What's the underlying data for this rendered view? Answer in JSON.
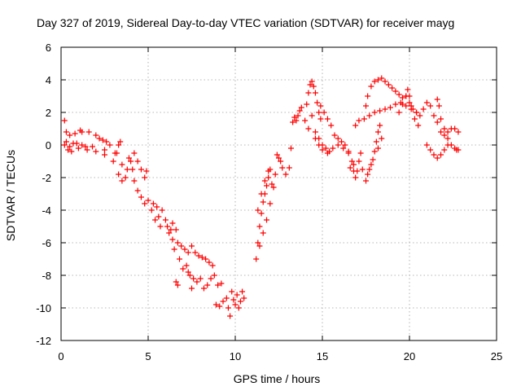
{
  "chart_data": {
    "type": "scatter",
    "title": "Day 327 of 2019, Sidereal Day-to-day VTEC variation (SDTVAR) for receiver mayg",
    "xlabel": "GPS time / hours",
    "ylabel": "SDTVAR / TECUs",
    "xlim": [
      0,
      25
    ],
    "ylim": [
      -12,
      6
    ],
    "xticks": [
      "0",
      "5",
      "10",
      "15",
      "20",
      "25"
    ],
    "yticks": [
      "-12",
      "-10",
      "-8",
      "-6",
      "-4",
      "-2",
      "0",
      "2",
      "4",
      "6"
    ],
    "grid": true,
    "marker": "plus",
    "color": "#ff0000",
    "series": [
      {
        "name": "SDTVAR",
        "points": [
          [
            0.2,
            1.5
          ],
          [
            0.3,
            0.8
          ],
          [
            0.5,
            0.6
          ],
          [
            0.8,
            0.7
          ],
          [
            1.2,
            0.8
          ],
          [
            1.6,
            0.8
          ],
          [
            2.0,
            0.6
          ],
          [
            2.4,
            0.3
          ],
          [
            2.8,
            0.0
          ],
          [
            3.1,
            -0.5
          ],
          [
            3.3,
            0.0
          ],
          [
            3.5,
            -1.2
          ],
          [
            3.7,
            -2.0
          ],
          [
            0.2,
            0.0
          ],
          [
            0.5,
            -0.1
          ],
          [
            1.0,
            -0.2
          ],
          [
            1.5,
            -0.3
          ],
          [
            2.0,
            -0.4
          ],
          [
            2.5,
            -0.6
          ],
          [
            3.0,
            -1.0
          ],
          [
            3.3,
            -1.8
          ],
          [
            3.5,
            -2.2
          ],
          [
            0.3,
            0.2
          ],
          [
            0.7,
            0.1
          ],
          [
            1.2,
            0.0
          ],
          [
            1.8,
            -0.1
          ],
          [
            2.5,
            -0.3
          ],
          [
            3.2,
            -0.5
          ],
          [
            3.8,
            -1.5
          ],
          [
            4.0,
            -1.0
          ],
          [
            4.2,
            -0.5
          ],
          [
            4.4,
            -1.0
          ],
          [
            4.6,
            -1.5
          ],
          [
            4.8,
            -2.0
          ],
          [
            4.9,
            -1.6
          ],
          [
            4.2,
            -2.2
          ],
          [
            4.4,
            -2.8
          ],
          [
            4.6,
            -3.2
          ],
          [
            4.8,
            -3.6
          ],
          [
            5.0,
            -3.4
          ],
          [
            5.2,
            -4.0
          ],
          [
            5.3,
            -3.6
          ],
          [
            5.5,
            -3.8
          ],
          [
            5.6,
            -4.4
          ],
          [
            5.8,
            -4.0
          ],
          [
            6.0,
            -4.6
          ],
          [
            6.1,
            -5.0
          ],
          [
            6.2,
            -5.4
          ],
          [
            6.3,
            -5.2
          ],
          [
            6.4,
            -5.8
          ],
          [
            6.5,
            -6.4
          ],
          [
            6.4,
            -4.8
          ],
          [
            6.6,
            -5.2
          ],
          [
            5.4,
            -4.6
          ],
          [
            5.7,
            -5.0
          ],
          [
            6.7,
            -6.0
          ],
          [
            6.9,
            -6.2
          ],
          [
            7.1,
            -6.4
          ],
          [
            7.3,
            -6.6
          ],
          [
            7.5,
            -6.2
          ],
          [
            7.7,
            -6.6
          ],
          [
            7.9,
            -6.8
          ],
          [
            8.1,
            -6.9
          ],
          [
            8.3,
            -7.0
          ],
          [
            8.5,
            -7.2
          ],
          [
            8.7,
            -7.4
          ],
          [
            6.8,
            -7.0
          ],
          [
            7.0,
            -7.6
          ],
          [
            7.2,
            -7.4
          ],
          [
            7.4,
            -8.0
          ],
          [
            7.6,
            -8.2
          ],
          [
            7.8,
            -8.4
          ],
          [
            8.0,
            -8.2
          ],
          [
            8.2,
            -8.8
          ],
          [
            8.4,
            -8.6
          ],
          [
            6.6,
            -8.4
          ],
          [
            6.7,
            -8.6
          ],
          [
            7.3,
            -7.8
          ],
          [
            7.5,
            -8.8
          ],
          [
            8.6,
            -8.2
          ],
          [
            8.8,
            -8.0
          ],
          [
            9.0,
            -8.6
          ],
          [
            9.2,
            -8.5
          ],
          [
            8.9,
            -9.8
          ],
          [
            9.1,
            -9.9
          ],
          [
            9.3,
            -9.6
          ],
          [
            9.5,
            -9.4
          ],
          [
            9.6,
            -10.0
          ],
          [
            9.7,
            -10.5
          ],
          [
            9.8,
            -9.0
          ],
          [
            9.9,
            -9.5
          ],
          [
            10.0,
            -9.8
          ],
          [
            10.1,
            -9.2
          ],
          [
            10.2,
            -10.0
          ],
          [
            10.3,
            -9.6
          ],
          [
            10.4,
            -9.0
          ],
          [
            10.5,
            -9.4
          ],
          [
            11.2,
            -7.0
          ],
          [
            11.3,
            -6.0
          ],
          [
            11.4,
            -5.0
          ],
          [
            11.5,
            -4.2
          ],
          [
            11.6,
            -3.5
          ],
          [
            11.7,
            -3.0
          ],
          [
            11.8,
            -2.5
          ],
          [
            11.9,
            -2.0
          ],
          [
            12.0,
            -1.5
          ],
          [
            11.3,
            -4.0
          ],
          [
            11.5,
            -3.0
          ],
          [
            11.7,
            -2.2
          ],
          [
            11.9,
            -1.6
          ],
          [
            12.1,
            -2.4
          ],
          [
            11.4,
            -6.2
          ],
          [
            11.6,
            -5.4
          ],
          [
            11.8,
            -4.6
          ],
          [
            12.0,
            -3.6
          ],
          [
            12.2,
            -2.6
          ],
          [
            12.3,
            -1.8
          ],
          [
            12.4,
            -0.6
          ],
          [
            12.5,
            -0.8
          ],
          [
            12.6,
            -1.0
          ],
          [
            12.7,
            -1.4
          ],
          [
            12.9,
            -1.8
          ],
          [
            13.1,
            -1.4
          ],
          [
            13.2,
            -0.2
          ],
          [
            13.3,
            1.4
          ],
          [
            13.4,
            1.7
          ],
          [
            13.5,
            1.5
          ],
          [
            13.6,
            1.8
          ],
          [
            13.7,
            2.1
          ],
          [
            13.8,
            2.3
          ],
          [
            14.0,
            1.5
          ],
          [
            14.1,
            2.5
          ],
          [
            14.2,
            3.2
          ],
          [
            14.3,
            3.7
          ],
          [
            14.4,
            3.9
          ],
          [
            14.5,
            3.6
          ],
          [
            14.6,
            3.2
          ],
          [
            14.7,
            2.6
          ],
          [
            14.8,
            2.0
          ],
          [
            14.9,
            1.6
          ],
          [
            14.2,
            1.0
          ],
          [
            14.4,
            1.8
          ],
          [
            14.6,
            0.8
          ],
          [
            14.8,
            0.4
          ],
          [
            15.0,
            0.0
          ],
          [
            15.2,
            -0.2
          ],
          [
            15.4,
            -0.4
          ],
          [
            14.9,
            2.4
          ],
          [
            15.1,
            2.0
          ],
          [
            15.3,
            1.6
          ],
          [
            15.5,
            1.2
          ],
          [
            15.7,
            0.6
          ],
          [
            15.9,
            0.4
          ],
          [
            16.1,
            0.2
          ],
          [
            14.6,
            0.4
          ],
          [
            14.8,
            0.0
          ],
          [
            15.0,
            -0.3
          ],
          [
            15.3,
            -0.5
          ],
          [
            15.6,
            -0.2
          ],
          [
            15.9,
            0.0
          ],
          [
            16.2,
            -0.2
          ],
          [
            16.5,
            -0.4
          ],
          [
            16.3,
            0.0
          ],
          [
            16.5,
            -0.5
          ],
          [
            16.7,
            -1.0
          ],
          [
            16.8,
            -1.6
          ],
          [
            16.9,
            -2.0
          ],
          [
            17.0,
            -1.6
          ],
          [
            17.1,
            -1.0
          ],
          [
            17.2,
            -0.5
          ],
          [
            16.6,
            -1.4
          ],
          [
            16.8,
            -1.2
          ],
          [
            17.3,
            -1.5
          ],
          [
            17.5,
            -2.2
          ],
          [
            17.6,
            -1.8
          ],
          [
            17.8,
            -1.2
          ],
          [
            18.0,
            -0.4
          ],
          [
            18.1,
            0.2
          ],
          [
            18.2,
            0.8
          ],
          [
            18.3,
            1.2
          ],
          [
            17.7,
            -1.5
          ],
          [
            17.9,
            -0.9
          ],
          [
            18.2,
            -0.2
          ],
          [
            18.4,
            0.4
          ],
          [
            17.5,
            2.4
          ],
          [
            17.6,
            3.0
          ],
          [
            17.8,
            3.6
          ],
          [
            18.0,
            3.9
          ],
          [
            18.2,
            4.0
          ],
          [
            18.4,
            4.1
          ],
          [
            18.6,
            3.9
          ],
          [
            18.8,
            3.7
          ],
          [
            19.0,
            3.5
          ],
          [
            19.2,
            3.3
          ],
          [
            19.4,
            3.1
          ],
          [
            19.6,
            2.9
          ],
          [
            19.8,
            3.0
          ],
          [
            20.0,
            2.6
          ],
          [
            20.2,
            2.2
          ],
          [
            20.4,
            2.0
          ],
          [
            16.9,
            1.2
          ],
          [
            17.1,
            1.5
          ],
          [
            17.4,
            1.6
          ],
          [
            17.7,
            1.8
          ],
          [
            18.0,
            2.0
          ],
          [
            18.3,
            2.1
          ],
          [
            18.6,
            2.2
          ],
          [
            18.9,
            2.3
          ],
          [
            19.2,
            2.5
          ],
          [
            19.5,
            2.6
          ],
          [
            19.8,
            2.4
          ],
          [
            20.1,
            2.2
          ],
          [
            20.4,
            2.0
          ],
          [
            19.4,
            2.0
          ],
          [
            19.6,
            2.5
          ],
          [
            19.8,
            3.0
          ],
          [
            19.9,
            3.4
          ],
          [
            20.0,
            3.0
          ],
          [
            20.1,
            2.4
          ],
          [
            20.3,
            1.6
          ],
          [
            20.5,
            1.2
          ],
          [
            20.6,
            1.8
          ],
          [
            20.8,
            2.2
          ],
          [
            21.0,
            2.6
          ],
          [
            21.2,
            2.4
          ],
          [
            21.4,
            1.8
          ],
          [
            21.6,
            1.4
          ],
          [
            21.8,
            0.8
          ],
          [
            22.0,
            0.6
          ],
          [
            22.2,
            0.8
          ],
          [
            22.4,
            1.0
          ],
          [
            22.6,
            1.0
          ],
          [
            22.8,
            0.8
          ],
          [
            21.6,
            2.8
          ],
          [
            21.7,
            2.4
          ],
          [
            21.8,
            1.6
          ],
          [
            22.0,
            1.0
          ],
          [
            22.2,
            0.4
          ],
          [
            22.4,
            0.0
          ],
          [
            22.6,
            -0.2
          ],
          [
            22.7,
            -0.3
          ],
          [
            22.8,
            -0.3
          ],
          [
            21.0,
            0.0
          ],
          [
            21.2,
            -0.3
          ],
          [
            21.4,
            -0.6
          ],
          [
            21.6,
            -0.8
          ],
          [
            21.8,
            -0.6
          ],
          [
            22.0,
            -0.3
          ],
          [
            22.2,
            0.0
          ],
          [
            0.6,
            -0.4
          ],
          [
            1.1,
            0.9
          ],
          [
            2.2,
            0.4
          ],
          [
            2.6,
            0.2
          ],
          [
            3.4,
            0.2
          ],
          [
            0.4,
            -0.3
          ],
          [
            0.9,
            0.1
          ],
          [
            1.4,
            -0.1
          ],
          [
            3.9,
            -0.8
          ],
          [
            4.1,
            -1.5
          ]
        ]
      }
    ]
  }
}
